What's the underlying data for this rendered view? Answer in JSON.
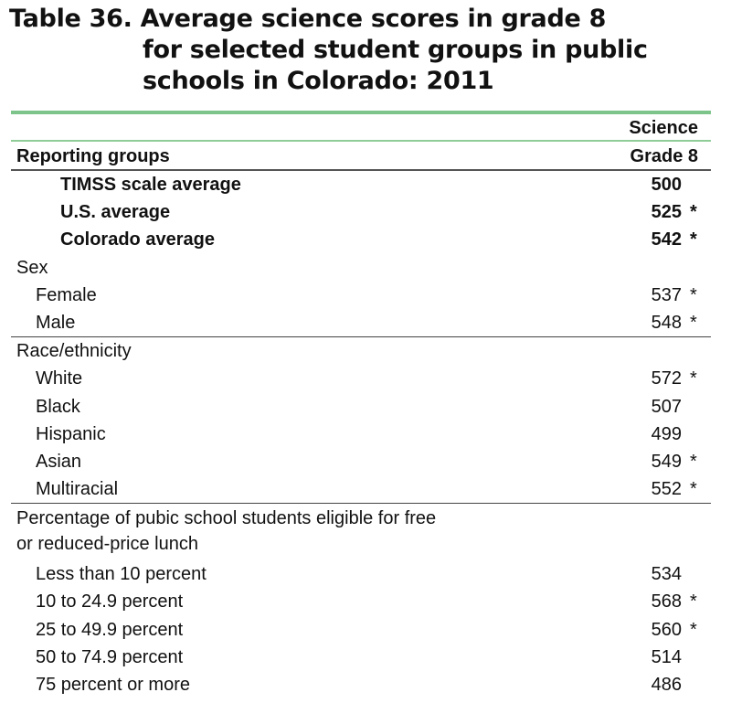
{
  "title": [
    "Table 36. Average science scores in grade 8",
    "for selected student groups in public",
    "schools in Colorado: 2011"
  ],
  "header": {
    "col_top": "Science",
    "col_bottom": "Grade 8",
    "row_label": "Reporting groups"
  },
  "rows": [
    {
      "label": "TIMSS scale average",
      "value": "500",
      "star": ""
    },
    {
      "label": "U.S. average",
      "value": "525",
      "star": "*"
    },
    {
      "label": "Colorado average",
      "value": "542",
      "star": "*"
    },
    {
      "label": "Sex",
      "value": "",
      "star": ""
    },
    {
      "label": "Female",
      "value": "537",
      "star": "*"
    },
    {
      "label": "Male",
      "value": "548",
      "star": "*"
    },
    {
      "label": "Race/ethnicity",
      "value": "",
      "star": ""
    },
    {
      "label": "White",
      "value": "572",
      "star": "*"
    },
    {
      "label": "Black",
      "value": "507",
      "star": ""
    },
    {
      "label": "Hispanic",
      "value": "499",
      "star": ""
    },
    {
      "label": "Asian",
      "value": "549",
      "star": "*"
    },
    {
      "label": "Multiracial",
      "value": "552",
      "star": "*"
    },
    {
      "label": "Percentage of pubic school students eligible for free",
      "label2": "or reduced-price lunch",
      "value": "",
      "star": ""
    },
    {
      "label": "Less than 10 percent",
      "value": "534",
      "star": ""
    },
    {
      "label": "10 to 24.9 percent",
      "value": "568",
      "star": "*"
    },
    {
      "label": "25 to 49.9 percent",
      "value": "560",
      "star": "*"
    },
    {
      "label": "50 to 74.9 percent",
      "value": "514",
      "star": ""
    },
    {
      "label": "75 percent or more",
      "value": "486",
      "star": ""
    }
  ],
  "colors": {
    "rule_green": "#7dc48a",
    "rule_dark": "#444444"
  }
}
